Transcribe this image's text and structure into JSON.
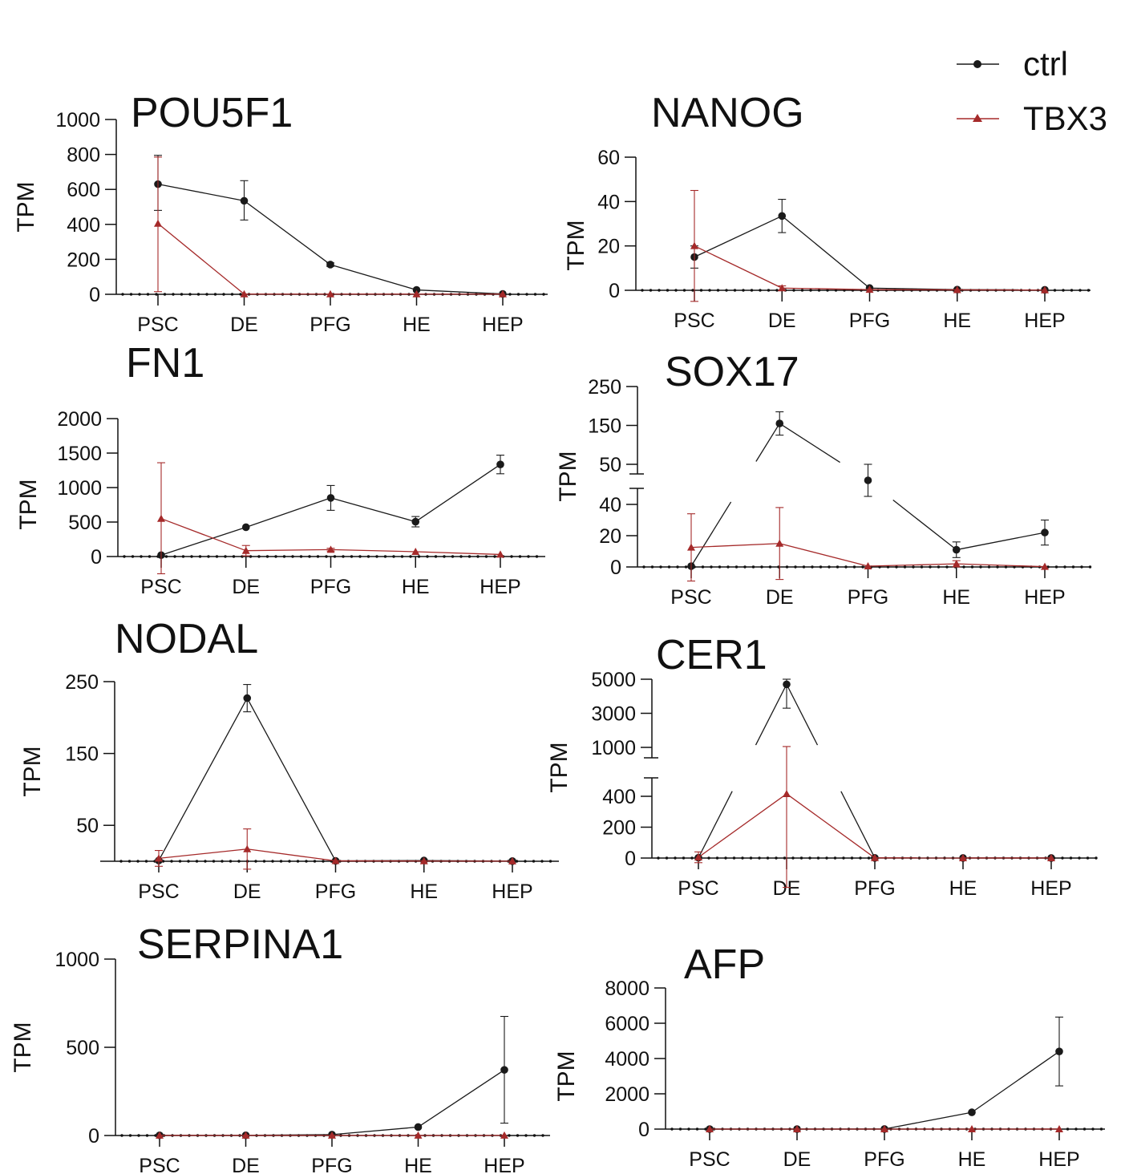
{
  "legend": {
    "items": [
      {
        "label": "ctrl",
        "color": "#1a1a1a",
        "marker": "circle"
      },
      {
        "label": "TBX3",
        "color": "#a52a2a",
        "marker": "triangle"
      }
    ]
  },
  "chart_data": [
    {
      "type": "line",
      "title": "POU5F1",
      "ylabel": "TPM",
      "categories": [
        "PSC",
        "DE",
        "PFG",
        "HE",
        "HEP"
      ],
      "ylim": [
        0,
        1000
      ],
      "yticks": [
        0,
        200,
        400,
        600,
        800,
        1000
      ],
      "series": [
        {
          "name": "ctrl",
          "values": [
            630,
            535,
            170,
            25,
            2
          ],
          "err_hi": [
            795,
            650,
            180,
            28,
            3
          ],
          "err_lo": [
            480,
            425,
            160,
            22,
            1
          ]
        },
        {
          "name": "TBX3",
          "values": [
            405,
            1,
            1,
            1,
            1
          ],
          "err_hi": [
            785,
            2,
            2,
            2,
            2
          ],
          "err_lo": [
            15,
            0,
            0,
            0,
            0
          ]
        }
      ]
    },
    {
      "type": "line",
      "title": "NANOG",
      "ylabel": "TPM",
      "categories": [
        "PSC",
        "DE",
        "PFG",
        "HE",
        "HEP"
      ],
      "ylim": [
        0,
        60
      ],
      "yticks": [
        0,
        20,
        40,
        60
      ],
      "series": [
        {
          "name": "ctrl",
          "values": [
            15,
            33.5,
            1,
            0.3,
            0.2
          ],
          "err_hi": [
            20,
            41,
            1.5,
            0.5,
            0.3
          ],
          "err_lo": [
            10,
            26,
            0.5,
            0.1,
            0.1
          ]
        },
        {
          "name": "TBX3",
          "values": [
            20,
            1,
            0.3,
            0.2,
            0.1
          ],
          "err_hi": [
            45,
            2,
            0.5,
            0.3,
            0.2
          ],
          "err_lo": [
            -5,
            0,
            0,
            0,
            0
          ]
        }
      ]
    },
    {
      "type": "line",
      "title": "FN1",
      "ylabel": "TPM",
      "categories": [
        "PSC",
        "DE",
        "PFG",
        "HE",
        "HEP"
      ],
      "ylim": [
        0,
        2000
      ],
      "yticks": [
        0,
        500,
        1000,
        1500,
        2000
      ],
      "series": [
        {
          "name": "ctrl",
          "values": [
            20,
            425,
            850,
            505,
            1335
          ],
          "err_hi": [
            25,
            440,
            1030,
            580,
            1470
          ],
          "err_lo": [
            15,
            410,
            670,
            430,
            1200
          ]
        },
        {
          "name": "TBX3",
          "values": [
            550,
            85,
            100,
            70,
            30
          ],
          "err_hi": [
            1360,
            160,
            120,
            80,
            35
          ],
          "err_lo": [
            -250,
            10,
            80,
            60,
            25
          ]
        }
      ]
    },
    {
      "type": "line",
      "title": "SOX17",
      "ylabel": "TPM",
      "categories": [
        "PSC",
        "DE",
        "PFG",
        "HE",
        "HEP"
      ],
      "ylim": [
        0,
        250
      ],
      "yticks": [
        0,
        20,
        40,
        50,
        150,
        250
      ],
      "axis_break": [
        45,
        50
      ],
      "series": [
        {
          "name": "ctrl",
          "values": [
            0.5,
            155,
            46,
            11,
            22
          ],
          "err_hi": [
            0.6,
            185,
            50,
            16,
            30
          ],
          "err_lo": [
            0.4,
            125,
            42,
            6,
            14
          ]
        },
        {
          "name": "TBX3",
          "values": [
            12.5,
            15,
            0.5,
            2,
            0.2
          ],
          "err_hi": [
            34,
            38,
            0.6,
            4,
            0.3
          ],
          "err_lo": [
            -9,
            -8,
            0.4,
            0,
            0.1
          ]
        }
      ]
    },
    {
      "type": "line",
      "title": "NODAL",
      "ylabel": "TPM",
      "categories": [
        "PSC",
        "DE",
        "PFG",
        "HE",
        "HEP"
      ],
      "ylim": [
        0,
        250
      ],
      "yticks": [
        50,
        150,
        250
      ],
      "series": [
        {
          "name": "ctrl",
          "values": [
            1,
            227,
            0.5,
            1,
            0.2
          ],
          "err_hi": [
            2,
            246,
            0.6,
            1.5,
            0.3
          ],
          "err_lo": [
            0,
            208,
            0.4,
            0.5,
            0.1
          ]
        },
        {
          "name": "TBX3",
          "values": [
            4,
            17,
            0.5,
            0.3,
            0.1
          ],
          "err_hi": [
            15,
            45,
            0.6,
            0.4,
            0.2
          ],
          "err_lo": [
            -7,
            -11,
            0.4,
            0.2,
            0
          ]
        }
      ]
    },
    {
      "type": "line",
      "title": "CER1",
      "ylabel": "TPM",
      "categories": [
        "PSC",
        "DE",
        "PFG",
        "HE",
        "HEP"
      ],
      "ylim": [
        0,
        5000
      ],
      "yticks": [
        0,
        200,
        400,
        1000,
        3000,
        5000
      ],
      "axis_break": [
        500,
        1000
      ],
      "series": [
        {
          "name": "ctrl",
          "values": [
            2,
            4700,
            1,
            0.5,
            0.3
          ],
          "err_hi": [
            3,
            5000,
            2,
            1,
            0.5
          ],
          "err_lo": [
            1,
            3300,
            0.5,
            0.2,
            0.1
          ]
        },
        {
          "name": "TBX3",
          "values": [
            5,
            430,
            1,
            0.3,
            0.2
          ],
          "err_hi": [
            40,
            1050,
            2,
            0.5,
            0.3
          ],
          "err_lo": [
            -30,
            -190,
            0.5,
            0.1,
            0.1
          ]
        }
      ]
    },
    {
      "type": "line",
      "title": "SERPINA1",
      "ylabel": "TPM",
      "categories": [
        "PSC",
        "DE",
        "PFG",
        "HE",
        "HEP"
      ],
      "ylim": [
        0,
        1000
      ],
      "yticks": [
        0,
        500,
        1000
      ],
      "series": [
        {
          "name": "ctrl",
          "values": [
            1,
            1,
            5,
            48,
            372
          ],
          "err_hi": [
            2,
            2,
            7,
            52,
            675
          ],
          "err_lo": [
            0,
            0,
            3,
            44,
            70
          ]
        },
        {
          "name": "TBX3",
          "values": [
            0.5,
            0.5,
            0.5,
            0.5,
            0.5
          ],
          "err_hi": [
            1,
            1,
            1,
            1,
            1
          ],
          "err_lo": [
            0,
            0,
            0,
            0,
            0
          ]
        }
      ]
    },
    {
      "type": "line",
      "title": "AFP",
      "ylabel": "TPM",
      "categories": [
        "PSC",
        "DE",
        "PFG",
        "HE",
        "HEP"
      ],
      "ylim": [
        0,
        8000
      ],
      "yticks": [
        0,
        2000,
        4000,
        6000,
        8000
      ],
      "series": [
        {
          "name": "ctrl",
          "values": [
            0,
            0,
            5,
            950,
            4400
          ],
          "err_hi": [
            5,
            5,
            10,
            1000,
            6350
          ],
          "err_lo": [
            0,
            0,
            0,
            900,
            2450
          ]
        },
        {
          "name": "TBX3",
          "values": [
            0,
            0,
            0,
            1,
            2
          ],
          "err_hi": [
            1,
            1,
            1,
            2,
            3
          ],
          "err_lo": [
            0,
            0,
            0,
            0,
            1
          ]
        }
      ]
    }
  ]
}
